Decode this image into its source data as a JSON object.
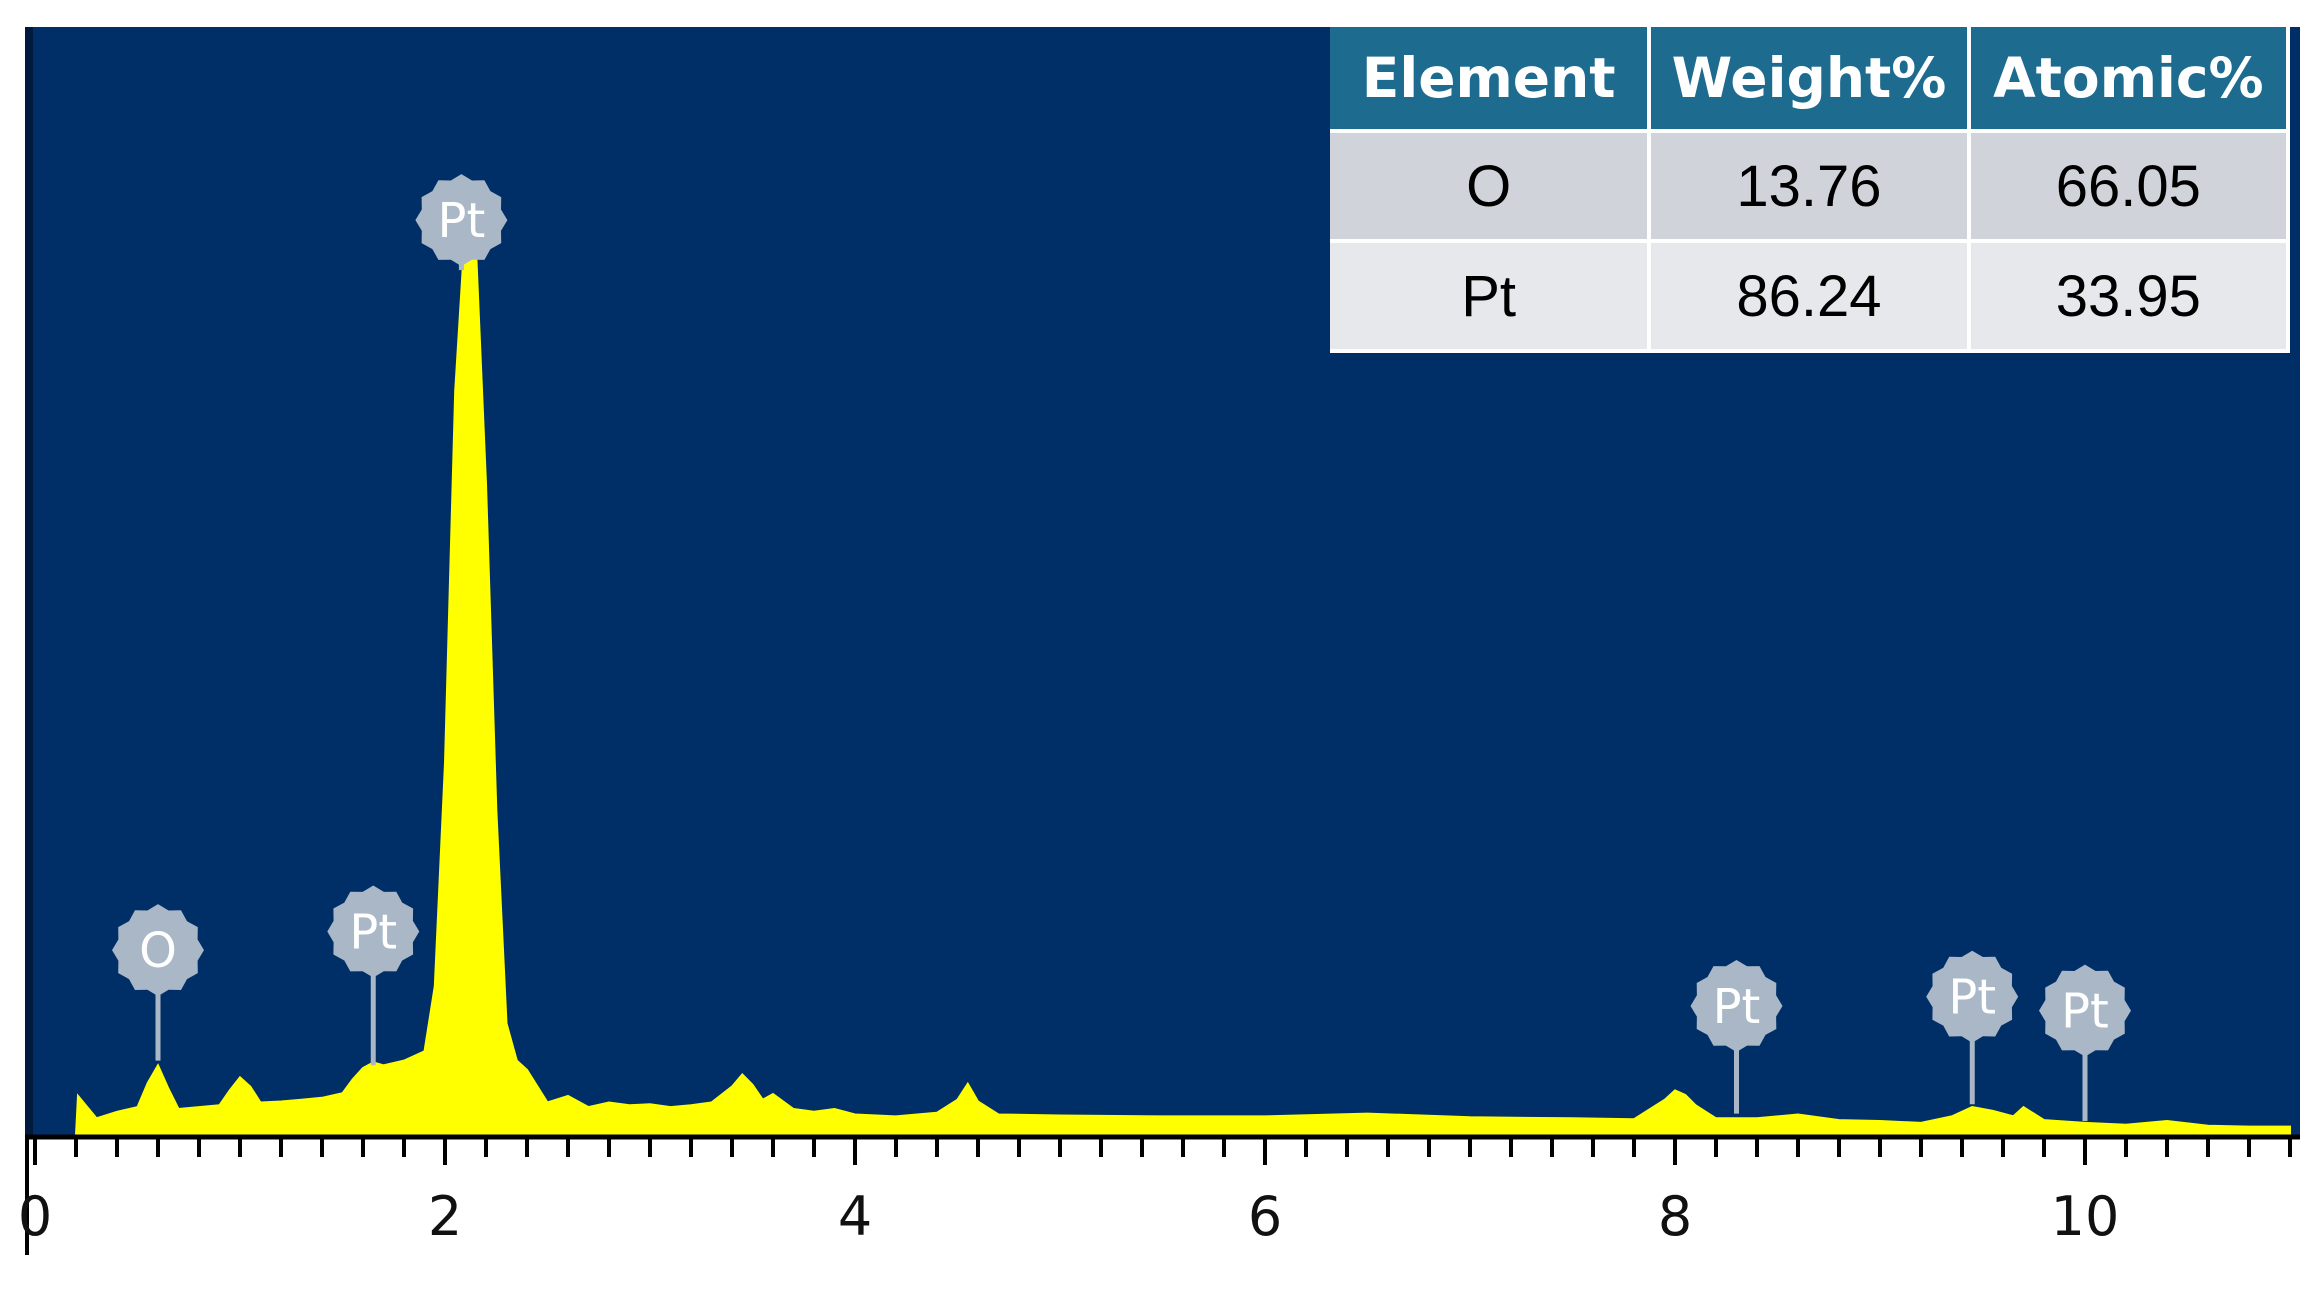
{
  "chart_data": {
    "type": "area",
    "title": "",
    "xlabel": "",
    "ylabel": "",
    "xlim": [
      0,
      11
    ],
    "x_ticks": [
      "0",
      "2",
      "4",
      "6",
      "8",
      "10"
    ],
    "grid": false,
    "colors": {
      "background": "#002f67",
      "spectrum": "#ffff00",
      "marker": "#a9b7c6",
      "header": "#1d6b8e"
    },
    "spectrum": {
      "x": [
        0.2,
        0.21,
        0.3,
        0.4,
        0.5,
        0.55,
        0.6,
        0.65,
        0.7,
        0.8,
        0.9,
        0.95,
        1.0,
        1.05,
        1.1,
        1.2,
        1.3,
        1.4,
        1.5,
        1.55,
        1.6,
        1.65,
        1.7,
        1.8,
        1.9,
        1.95,
        2.0,
        2.05,
        2.1,
        2.15,
        2.2,
        2.25,
        2.3,
        2.35,
        2.4,
        2.5,
        2.6,
        2.7,
        2.8,
        2.9,
        3.0,
        3.1,
        3.2,
        3.3,
        3.4,
        3.45,
        3.5,
        3.55,
        3.6,
        3.7,
        3.8,
        3.9,
        4.0,
        4.2,
        4.4,
        4.5,
        4.55,
        4.6,
        4.7,
        5.0,
        5.5,
        6.0,
        6.5,
        7.0,
        7.5,
        7.8,
        7.95,
        8.0,
        8.05,
        8.1,
        8.2,
        8.4,
        8.6,
        8.8,
        9.0,
        9.2,
        9.35,
        9.45,
        9.55,
        9.65,
        9.7,
        9.8,
        10.0,
        10.2,
        10.4,
        10.6,
        10.8,
        11.0
      ],
      "y": [
        0,
        4.2,
        1.8,
        2.5,
        3.0,
        5.6,
        7.5,
        5.0,
        2.8,
        3.0,
        3.2,
        4.8,
        6.2,
        5.2,
        3.5,
        3.6,
        3.8,
        4.0,
        4.5,
        6.0,
        7.2,
        7.8,
        7.5,
        8.0,
        9.0,
        16.0,
        40.0,
        80.0,
        98.0,
        96.0,
        70.0,
        35.0,
        12.0,
        8.0,
        7.0,
        3.5,
        4.2,
        3.0,
        3.5,
        3.2,
        3.3,
        3.0,
        3.2,
        3.5,
        5.2,
        6.5,
        5.4,
        3.8,
        4.4,
        2.8,
        2.5,
        2.8,
        2.2,
        2.0,
        2.4,
        3.8,
        5.5,
        3.6,
        2.2,
        2.1,
        2.0,
        2.0,
        2.3,
        1.9,
        1.8,
        1.7,
        3.8,
        4.8,
        4.3,
        3.2,
        1.8,
        1.8,
        2.2,
        1.6,
        1.5,
        1.3,
        2.0,
        3.0,
        2.6,
        2.0,
        3.0,
        1.6,
        1.3,
        1.1,
        1.5,
        1.0,
        0.9,
        0.9
      ]
    },
    "peak_labels": [
      {
        "element": "O",
        "x": 0.6,
        "y": 8.0,
        "level": 14.5
      },
      {
        "element": "Pt",
        "x": 1.65,
        "y": 7.5,
        "level": 16.5
      },
      {
        "element": "Pt",
        "x": 2.08,
        "y": 93.0,
        "level": 93.0
      },
      {
        "element": "Pt",
        "x": 8.3,
        "y": 2.3,
        "level": 8.5
      },
      {
        "element": "Pt",
        "x": 9.45,
        "y": 3.3,
        "level": 9.5
      },
      {
        "element": "Pt",
        "x": 10.0,
        "y": 1.5,
        "level": 8.0
      }
    ]
  },
  "composition_table": {
    "headers": [
      "Element",
      "Weight%",
      "Atomic%"
    ],
    "rows": [
      [
        "O",
        "13.76",
        "66.05"
      ],
      [
        "Pt",
        "86.24",
        "33.95"
      ]
    ]
  }
}
